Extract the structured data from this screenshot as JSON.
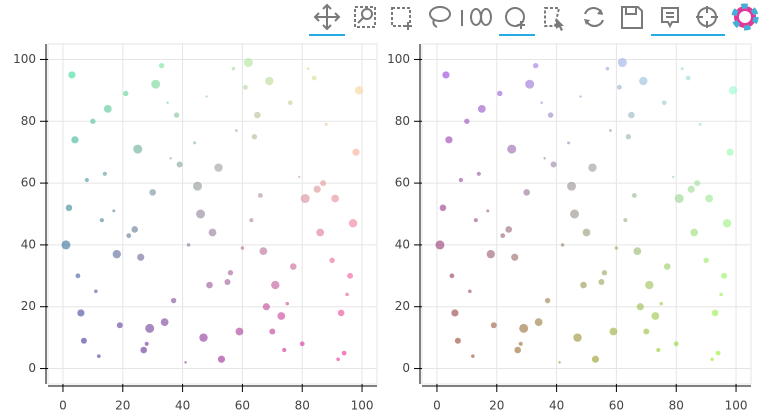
{
  "chart_data": [
    {
      "type": "scatter",
      "x": [
        3,
        12,
        25,
        37,
        48,
        59,
        66,
        77,
        88,
        97,
        8,
        19,
        31,
        42,
        53,
        64,
        71,
        82,
        93,
        5,
        15,
        28,
        39,
        46,
        57,
        68,
        79,
        90,
        99,
        2,
        22,
        34,
        44,
        55,
        62,
        74,
        85,
        95,
        10,
        18,
        27,
        36,
        50,
        61,
        70,
        81,
        92,
        6,
        14,
        24,
        33,
        47,
        58,
        67,
        76,
        87,
        98,
        1,
        11,
        21,
        30,
        41,
        52,
        63,
        73,
        84,
        96,
        4,
        17,
        29,
        38,
        49,
        60,
        69,
        80,
        91,
        7,
        13,
        26,
        35,
        45,
        56,
        65,
        75,
        86,
        94
      ],
      "y": [
        95,
        4,
        71,
        22,
        88,
        12,
        56,
        33,
        79,
        47,
        61,
        14,
        92,
        40,
        3,
        75,
        27,
        97,
        18,
        30,
        84,
        8,
        66,
        50,
        97,
        20,
        62,
        35,
        90,
        52,
        43,
        15,
        73,
        28,
        99,
        6,
        58,
        24,
        80,
        37,
        6,
        68,
        44,
        91,
        12,
        55,
        3,
        18,
        63,
        45,
        98,
        10,
        77,
        38,
        86,
        60,
        70,
        40,
        25,
        89,
        57,
        2,
        65,
        48,
        17,
        94,
        30,
        74,
        51,
        13,
        82,
        27,
        39,
        93,
        8,
        55,
        9,
        48,
        36,
        86,
        59,
        31,
        82,
        21,
        44,
        5
      ],
      "sizes": [
        1.2,
        0.6,
        1.5,
        0.9,
        0.4,
        1.3,
        0.8,
        1.1,
        0.5,
        1.4,
        0.7,
        1.0,
        1.5,
        0.6,
        1.2,
        0.9,
        1.4,
        0.5,
        1.1,
        0.8,
        1.3,
        0.7,
        1.0,
        1.5,
        0.6,
        1.2,
        0.4,
        0.9,
        1.4,
        1.1,
        0.8,
        1.3,
        0.5,
        1.0,
        1.5,
        0.7,
        1.2,
        0.6,
        0.9,
        1.4,
        1.1,
        0.4,
        1.3,
        0.8,
        1.0,
        1.5,
        0.6,
        1.2,
        0.7,
        1.1,
        0.9,
        1.4,
        0.5,
        1.3,
        0.8,
        1.0,
        1.2,
        1.5,
        0.6,
        0.9,
        1.1,
        0.4,
        1.4,
        0.7,
        1.3,
        0.8,
        1.0,
        1.2,
        0.5,
        1.5,
        0.9,
        1.1,
        0.6,
        1.4,
        0.8,
        1.3,
        1.0,
        0.7,
        1.2,
        0.4,
        1.5,
        0.9,
        1.1,
        0.6,
        1.3,
        0.8
      ],
      "color_corners": {
        "bottom_left": "#321e96",
        "top_left": "#32e696",
        "bottom_right": "#fa1e96",
        "top_right": "#fae696"
      },
      "alpha": 0.6,
      "xlim": [
        -5,
        105
      ],
      "ylim": [
        -5,
        105
      ],
      "xticks": [
        0,
        20,
        40,
        60,
        80,
        100
      ],
      "yticks": [
        0,
        20,
        40,
        60,
        80,
        100
      ],
      "grid": true
    },
    {
      "type": "scatter",
      "x": [
        3,
        12,
        25,
        37,
        48,
        59,
        66,
        77,
        88,
        97,
        8,
        19,
        31,
        42,
        53,
        64,
        71,
        82,
        93,
        5,
        15,
        28,
        39,
        46,
        57,
        68,
        79,
        90,
        99,
        2,
        22,
        34,
        44,
        55,
        62,
        74,
        85,
        95,
        10,
        18,
        27,
        36,
        50,
        61,
        70,
        81,
        92,
        6,
        14,
        24,
        33,
        47,
        58,
        67,
        76,
        87,
        98,
        1,
        11,
        21,
        30,
        41,
        52,
        63,
        73,
        84,
        96,
        4,
        17,
        29,
        38,
        49,
        60,
        69,
        80,
        91,
        7,
        13,
        26,
        35,
        45,
        56,
        65,
        75,
        86,
        94
      ],
      "y": [
        95,
        4,
        71,
        22,
        88,
        12,
        56,
        33,
        79,
        47,
        61,
        14,
        92,
        40,
        3,
        75,
        27,
        97,
        18,
        30,
        84,
        8,
        66,
        50,
        97,
        20,
        62,
        35,
        90,
        52,
        43,
        15,
        73,
        28,
        99,
        6,
        58,
        24,
        80,
        37,
        6,
        68,
        44,
        91,
        12,
        55,
        3,
        18,
        63,
        45,
        98,
        10,
        77,
        38,
        86,
        60,
        70,
        40,
        25,
        89,
        57,
        2,
        65,
        48,
        17,
        94,
        30,
        74,
        51,
        13,
        82,
        27,
        39,
        93,
        8,
        55,
        9,
        48,
        36,
        86,
        59,
        31,
        82,
        21,
        44,
        5
      ],
      "sizes": [
        1.2,
        0.6,
        1.5,
        0.9,
        0.4,
        1.3,
        0.8,
        1.1,
        0.5,
        1.4,
        0.7,
        1.0,
        1.5,
        0.6,
        1.2,
        0.9,
        1.4,
        0.5,
        1.1,
        0.8,
        1.3,
        0.7,
        1.0,
        1.5,
        0.6,
        1.2,
        0.4,
        0.9,
        1.4,
        1.1,
        0.8,
        1.3,
        0.5,
        1.0,
        1.5,
        0.7,
        1.2,
        0.6,
        0.9,
        1.4,
        1.1,
        0.4,
        1.3,
        0.8,
        1.0,
        1.5,
        0.6,
        1.2,
        0.7,
        1.1,
        0.9,
        1.4,
        0.5,
        1.3,
        0.8,
        1.0,
        1.2,
        1.5,
        0.6,
        0.9,
        1.1,
        0.4,
        1.4,
        0.7,
        1.3,
        0.8,
        1.0,
        1.2,
        0.5,
        1.5,
        0.9,
        1.1,
        0.6,
        1.4,
        0.8,
        1.3,
        1.0,
        0.7,
        1.2,
        0.4,
        1.5,
        0.9,
        1.1,
        0.6,
        1.3,
        0.8
      ],
      "color_corners": {
        "bottom_left": "#96321e",
        "top_left": "#9632e6",
        "bottom_right": "#96fa1e",
        "top_right": "#96fae6"
      },
      "alpha": 0.6,
      "xlim": [
        -5,
        105
      ],
      "ylim": [
        -5,
        105
      ],
      "xticks": [
        0,
        20,
        40,
        60,
        80,
        100
      ],
      "yticks": [
        0,
        20,
        40,
        60,
        80,
        100
      ],
      "grid": true
    }
  ]
}
